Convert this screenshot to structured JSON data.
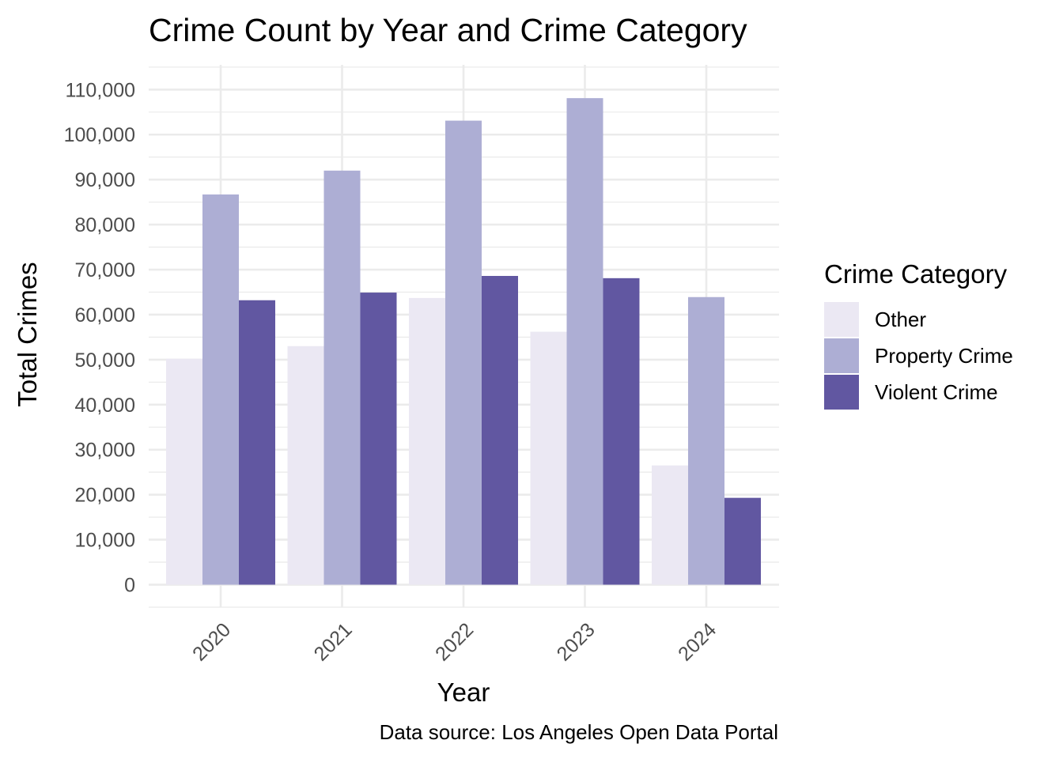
{
  "chart_data": {
    "type": "bar",
    "title": "Crime Count by Year and Crime Category",
    "xlabel": "Year",
    "ylabel": "Total Crimes",
    "caption": "Data source: Los Angeles Open Data Portal",
    "categories": [
      "2020",
      "2021",
      "2022",
      "2023",
      "2024"
    ],
    "ylim": [
      -5000,
      110000
    ],
    "yticks": [
      0,
      10000,
      20000,
      30000,
      40000,
      50000,
      60000,
      70000,
      80000,
      90000,
      100000,
      110000
    ],
    "ytick_labels": [
      "0",
      "10,000",
      "20,000",
      "30,000",
      "40,000",
      "50,000",
      "60,000",
      "70,000",
      "80,000",
      "90,000",
      "100,000",
      "110,000"
    ],
    "grid": true,
    "legend": {
      "title": "Crime Category",
      "placement": "right"
    },
    "series": [
      {
        "name": "Other",
        "color": "#ebe8f3",
        "values": [
          50200,
          53000,
          63700,
          56200,
          26500
        ]
      },
      {
        "name": "Property Crime",
        "color": "#adaed4",
        "values": [
          86700,
          92000,
          103100,
          108100,
          63900
        ]
      },
      {
        "name": "Violent Crime",
        "color": "#6157a1",
        "values": [
          63200,
          64900,
          68600,
          68100,
          19300
        ]
      }
    ]
  }
}
